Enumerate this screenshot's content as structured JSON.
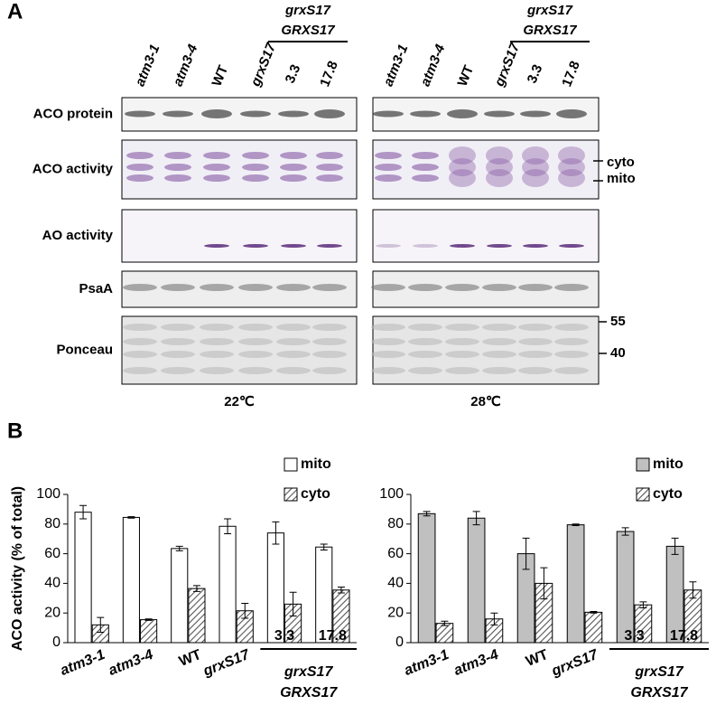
{
  "panel_a": {
    "label": "A",
    "lanes": [
      "atm3-1",
      "atm3-4",
      "WT",
      "grxS17",
      "3.3",
      "17.8"
    ],
    "group_label": [
      "grxS17",
      "GRXS17"
    ],
    "rows": [
      "ACO protein",
      "ACO activity",
      "AO activity",
      "PsaA",
      "Ponceau"
    ],
    "band_labels": [
      "cyto",
      "mito"
    ],
    "markers": [
      "55",
      "40"
    ],
    "conditions": [
      "22℃",
      "28℃"
    ]
  },
  "panel_b": {
    "label": "B",
    "group_label": [
      "grxS17",
      "GRXS17"
    ]
  },
  "chart_data": [
    {
      "type": "bar",
      "y_label": "ACO activity (% of total)",
      "categories": [
        "atm3-1",
        "atm3-4",
        "WT",
        "grxS17",
        "3.3",
        "17.8"
      ],
      "series": [
        {
          "name": "mito",
          "color": "#ffffff",
          "values": [
            88,
            84.5,
            63.5,
            78.5,
            74,
            64.5
          ],
          "errors": [
            4.5,
            0.5,
            1.5,
            5,
            7.5,
            2
          ]
        },
        {
          "name": "cyto",
          "color": "hatch",
          "values": [
            12,
            15.5,
            36.5,
            21.5,
            26,
            35.5
          ],
          "errors": [
            5,
            0.5,
            2,
            5,
            8,
            2
          ]
        }
      ],
      "ylim": [
        0,
        100
      ],
      "yticks": [
        0,
        20,
        40,
        60,
        80,
        100
      ],
      "legend": "upper right"
    },
    {
      "type": "bar",
      "categories": [
        "atm3-1",
        "atm3-4",
        "WT",
        "grxS17",
        "3.3",
        "17.8"
      ],
      "series": [
        {
          "name": "mito",
          "color": "#c0c0c0",
          "values": [
            87,
            84,
            60,
            79.5,
            75,
            65
          ],
          "errors": [
            1.5,
            4.5,
            10.5,
            0.5,
            2.5,
            5.5
          ]
        },
        {
          "name": "cyto",
          "color": "hatch",
          "values": [
            13,
            16,
            40,
            20.5,
            25.5,
            35.5
          ],
          "errors": [
            1.5,
            4,
            10.5,
            0.5,
            2,
            5.5
          ]
        }
      ],
      "ylim": [
        0,
        100
      ],
      "yticks": [
        0,
        20,
        40,
        60,
        80,
        100
      ],
      "legend": "upper right"
    }
  ]
}
